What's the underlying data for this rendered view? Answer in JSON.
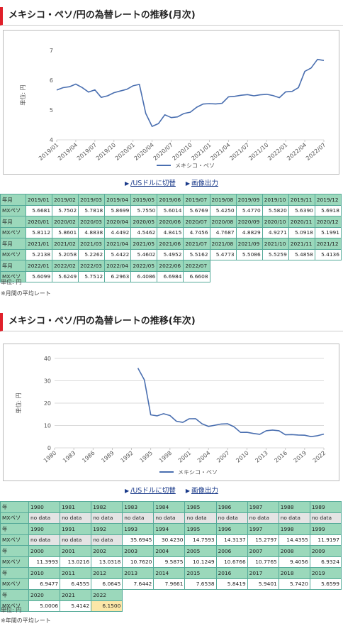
{
  "monthly": {
    "title": "メキシコ・ペソ/円の為替レートの推移(月次)",
    "chart_data": {
      "type": "line",
      "ylabel": "単位: 円",
      "ylim": [
        4,
        7
      ],
      "yticks": [
        4,
        5,
        6,
        7
      ],
      "x_tick_labels": [
        "2019/01",
        "2019/04",
        "2019/07",
        "2019/10",
        "2020/01",
        "2020/04",
        "2020/07",
        "2020/10",
        "2021/01",
        "2021/04",
        "2021/07",
        "2021/10",
        "2022/01",
        "2022/04",
        "2022/07"
      ],
      "x": [
        "2019/01",
        "2019/02",
        "2019/03",
        "2019/04",
        "2019/05",
        "2019/06",
        "2019/07",
        "2019/08",
        "2019/09",
        "2019/10",
        "2019/11",
        "2019/12",
        "2020/01",
        "2020/02",
        "2020/03",
        "2020/04",
        "2020/05",
        "2020/06",
        "2020/07",
        "2020/08",
        "2020/09",
        "2020/10",
        "2020/11",
        "2020/12",
        "2021/01",
        "2021/02",
        "2021/03",
        "2021/04",
        "2021/05",
        "2021/06",
        "2021/07",
        "2021/08",
        "2021/09",
        "2021/10",
        "2021/11",
        "2021/12",
        "2022/01",
        "2022/02",
        "2022/03",
        "2022/04",
        "2022/05",
        "2022/06",
        "2022/07"
      ],
      "series": [
        {
          "name": "メキシコ・ペソ",
          "values": [
            5.6681,
            5.7502,
            5.7818,
            5.8699,
            5.755,
            5.6014,
            5.6769,
            5.425,
            5.477,
            5.582,
            5.639,
            5.6918,
            5.8112,
            5.8601,
            4.8838,
            4.4492,
            4.5462,
            4.8415,
            4.7456,
            4.7687,
            4.8829,
            4.9271,
            5.0918,
            5.1991,
            5.2138,
            5.2058,
            5.2262,
            5.4422,
            5.4602,
            5.4952,
            5.5162,
            5.4773,
            5.5086,
            5.5259,
            5.4858,
            5.4136,
            5.6099,
            5.6249,
            5.7512,
            6.2963,
            6.4086,
            6.6984,
            6.6608
          ]
        }
      ],
      "legend": "bottom",
      "color": "#4a6fb0"
    },
    "links": {
      "usd": "/USドルに切替",
      "image": "画像出力"
    },
    "table": {
      "rows": [
        {
          "header": [
            "年月",
            "2019/01",
            "2019/02",
            "2019/03",
            "2019/04",
            "2019/05",
            "2019/06",
            "2019/07",
            "2019/08",
            "2019/09",
            "2019/10",
            "2019/11",
            "2019/12"
          ],
          "values": [
            "MXペソ",
            "5.6681",
            "5.7502",
            "5.7818",
            "5.8699",
            "5.7550",
            "5.6014",
            "5.6769",
            "5.4250",
            "5.4770",
            "5.5820",
            "5.6390",
            "5.6918"
          ]
        },
        {
          "header": [
            "年月",
            "2020/01",
            "2020/02",
            "2020/03",
            "2020/04",
            "2020/05",
            "2020/06",
            "2020/07",
            "2020/08",
            "2020/09",
            "2020/10",
            "2020/11",
            "2020/12"
          ],
          "values": [
            "MXペソ",
            "5.8112",
            "5.8601",
            "4.8838",
            "4.4492",
            "4.5462",
            "4.8415",
            "4.7456",
            "4.7687",
            "4.8829",
            "4.9271",
            "5.0918",
            "5.1991"
          ]
        },
        {
          "header": [
            "年月",
            "2021/01",
            "2021/02",
            "2021/03",
            "2021/04",
            "2021/05",
            "2021/06",
            "2021/07",
            "2021/08",
            "2021/09",
            "2021/10",
            "2021/11",
            "2021/12"
          ],
          "values": [
            "MXペソ",
            "5.2138",
            "5.2058",
            "5.2262",
            "5.4422",
            "5.4602",
            "5.4952",
            "5.5162",
            "5.4773",
            "5.5086",
            "5.5259",
            "5.4858",
            "5.4136"
          ]
        },
        {
          "header": [
            "年月",
            "2022/01",
            "2022/02",
            "2022/03",
            "2022/04",
            "2022/05",
            "2022/06",
            "2022/07"
          ],
          "values": [
            "MXペソ",
            "5.6099",
            "5.6249",
            "5.7512",
            "6.2963",
            "6.4086",
            "6.6984",
            "6.6608"
          ]
        }
      ]
    },
    "unit_note": "単位: 円",
    "avg_note": "※月間の平均レート"
  },
  "yearly": {
    "title": "メキシコ・ペソ/円の為替レートの推移(年次)",
    "chart_data": {
      "type": "line",
      "ylabel": "単位: 円",
      "ylim": [
        0,
        40
      ],
      "yticks": [
        0,
        10,
        20,
        30,
        40
      ],
      "x_tick_labels": [
        "1980",
        "1983",
        "1986",
        "1989",
        "1992",
        "1995",
        "1998",
        "2001",
        "2004",
        "2007",
        "2010",
        "2013",
        "2016",
        "2019",
        "2022"
      ],
      "x": [
        1980,
        1981,
        1982,
        1983,
        1984,
        1985,
        1986,
        1987,
        1988,
        1989,
        1990,
        1991,
        1992,
        1993,
        1994,
        1995,
        1996,
        1997,
        1998,
        1999,
        2000,
        2001,
        2002,
        2003,
        2004,
        2005,
        2006,
        2007,
        2008,
        2009,
        2010,
        2011,
        2012,
        2013,
        2014,
        2015,
        2016,
        2017,
        2018,
        2019,
        2020,
        2021,
        2022
      ],
      "series": [
        {
          "name": "メキシコ・ペソ",
          "values": [
            null,
            null,
            null,
            null,
            null,
            null,
            null,
            null,
            null,
            null,
            null,
            null,
            null,
            35.6945,
            30.423,
            14.7593,
            14.3137,
            15.2797,
            14.4355,
            11.9197,
            11.3993,
            13.0216,
            13.0318,
            10.762,
            9.5875,
            10.1249,
            10.6766,
            10.7765,
            9.4056,
            6.9324,
            6.9477,
            6.4555,
            6.0645,
            7.6442,
            7.9661,
            7.6538,
            5.8419,
            5.9401,
            5.742,
            5.6599,
            5.0006,
            5.4142,
            6.15
          ]
        }
      ],
      "legend": "bottom",
      "color": "#4a6fb0"
    },
    "links": {
      "usd": "/USドルに切替",
      "image": "画像出力"
    },
    "table": {
      "rows": [
        {
          "header": [
            "年",
            "1980",
            "1981",
            "1982",
            "1983",
            "1984",
            "1985",
            "1986",
            "1987",
            "1988",
            "1989"
          ],
          "values": [
            "MXペソ",
            "no data",
            "no data",
            "no data",
            "no data",
            "no data",
            "no data",
            "no data",
            "no data",
            "no data",
            "no data"
          ]
        },
        {
          "header": [
            "年",
            "1990",
            "1991",
            "1992",
            "1993",
            "1994",
            "1995",
            "1996",
            "1997",
            "1998",
            "1999"
          ],
          "values": [
            "MXペソ",
            "no data",
            "no data",
            "no data",
            "35.6945",
            "30.4230",
            "14.7593",
            "14.3137",
            "15.2797",
            "14.4355",
            "11.9197"
          ]
        },
        {
          "header": [
            "年",
            "2000",
            "2001",
            "2002",
            "2003",
            "2004",
            "2005",
            "2006",
            "2007",
            "2008",
            "2009"
          ],
          "values": [
            "MXペソ",
            "11.3993",
            "13.0216",
            "13.0318",
            "10.7620",
            "9.5875",
            "10.1249",
            "10.6766",
            "10.7765",
            "9.4056",
            "6.9324"
          ]
        },
        {
          "header": [
            "年",
            "2010",
            "2011",
            "2012",
            "2013",
            "2014",
            "2015",
            "2016",
            "2017",
            "2018",
            "2019"
          ],
          "values": [
            "MXペソ",
            "6.9477",
            "6.4555",
            "6.0645",
            "7.6442",
            "7.9661",
            "7.6538",
            "5.8419",
            "5.9401",
            "5.7420",
            "5.6599"
          ]
        },
        {
          "header": [
            "年",
            "2020",
            "2021",
            "2022"
          ],
          "values": [
            "MXペソ",
            "5.0006",
            "5.4142",
            "6.1500"
          ]
        }
      ]
    },
    "unit_note": "単位: 円",
    "avg_note": "※年間の平均レート"
  }
}
